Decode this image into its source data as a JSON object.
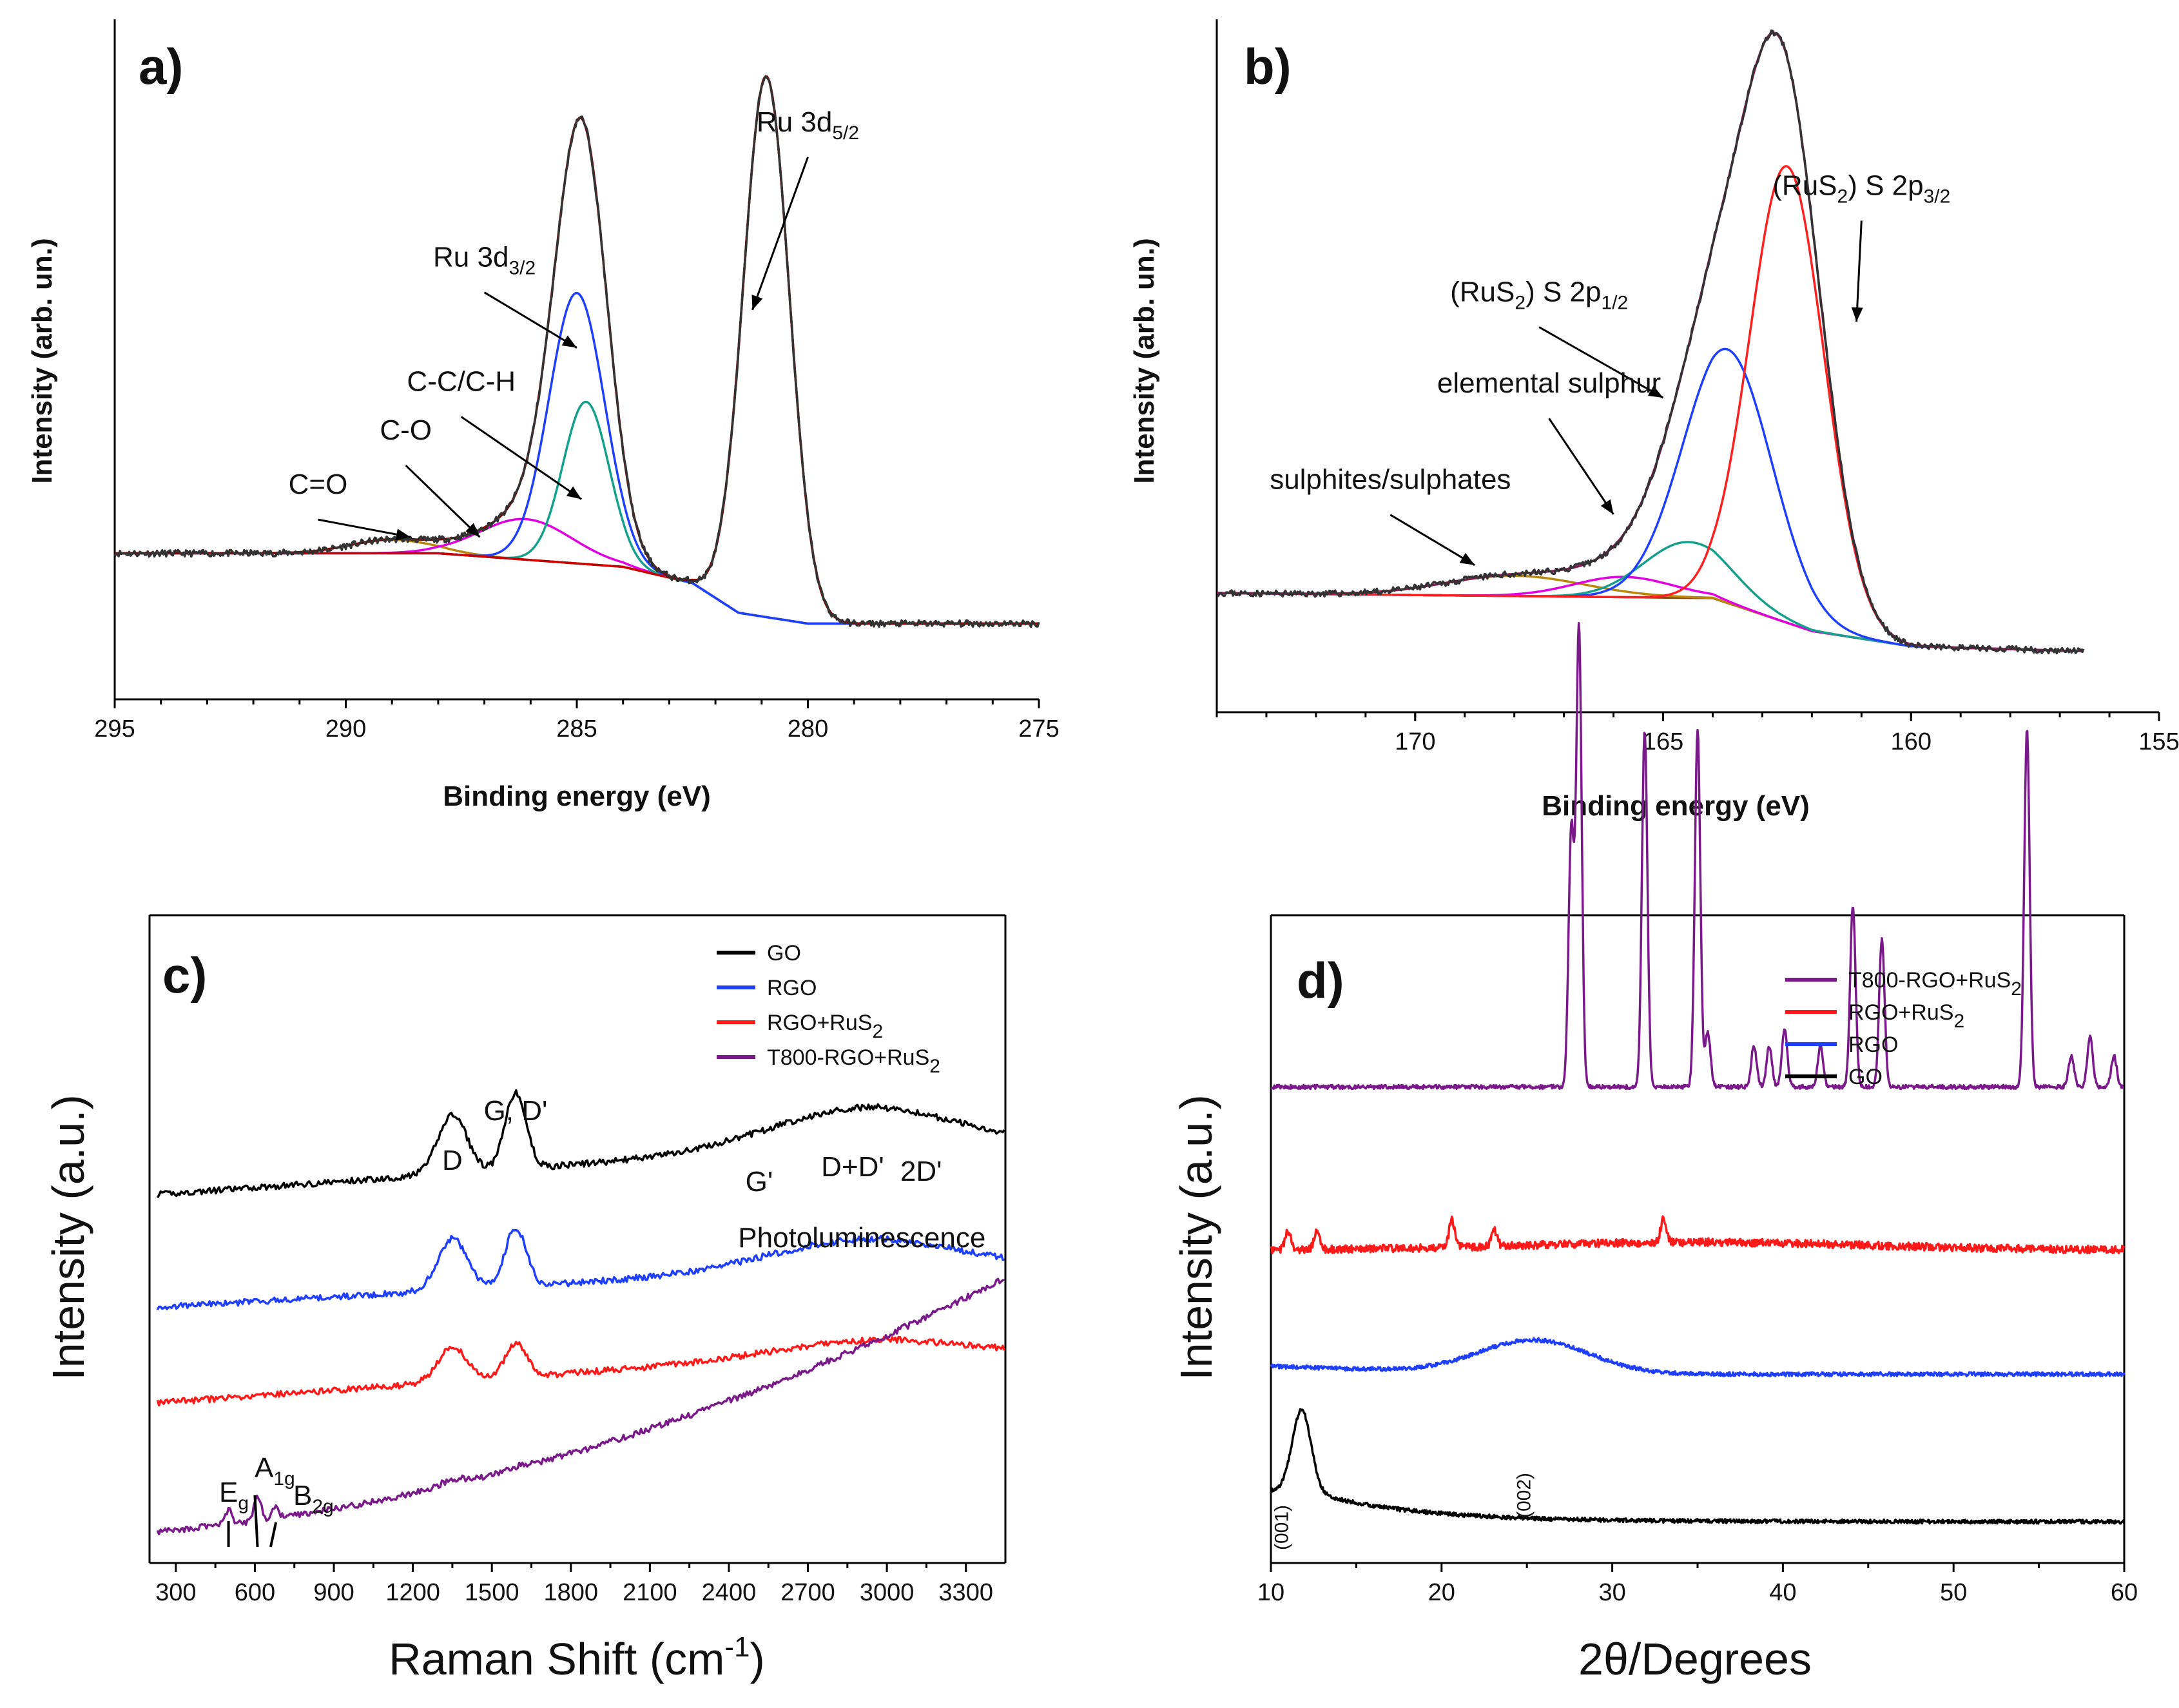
{
  "chart_data": [
    {
      "id": "a",
      "type": "line",
      "panel_label": "a)",
      "xlabel": "Binding energy (eV)",
      "ylabel": "Intensity (arb. un.)",
      "xlim": [
        295,
        275
      ],
      "ylim": [
        0,
        1.15
      ],
      "xticks": [
        "295",
        "290",
        "285",
        "280",
        "275"
      ],
      "baseline": [
        [
          295,
          0.27
        ],
        [
          288,
          0.27
        ],
        [
          284,
          0.245
        ],
        [
          282.5,
          0.215
        ],
        [
          281.5,
          0.16
        ],
        [
          280,
          0.14
        ],
        [
          275,
          0.14
        ]
      ],
      "components": [
        {
          "name": "C=O",
          "color": "#b8860b",
          "center": 289.0,
          "height": 0.025,
          "width": 0.9
        },
        {
          "name": "C-O",
          "color": "#e000e0",
          "center": 286.1,
          "height": 0.075,
          "width": 1.0
        },
        {
          "name": "C-C/C-H",
          "color": "#14a08c",
          "center": 284.8,
          "height": 0.3,
          "width": 0.5
        },
        {
          "name": "Ru 3d3/2",
          "color": "#1f3fff",
          "center": 285.0,
          "height": 0.5,
          "width": 0.6
        },
        {
          "name": "Ru 3d5/2",
          "color": "#cc0000",
          "center": 280.9,
          "height": 1.0,
          "width": 0.5
        }
      ],
      "annotations": [
        {
          "text": "Ru 3d",
          "sub": "5/2",
          "x": 280.0,
          "y": 1.05,
          "arrow_to": [
            281.2,
            0.72
          ]
        },
        {
          "text": "Ru 3d",
          "sub": "3/2",
          "x": 287.0,
          "y": 0.8,
          "arrow_to": [
            285.0,
            0.65
          ]
        },
        {
          "text": "C-C/C-H",
          "sub": "",
          "x": 287.5,
          "y": 0.57,
          "arrow_to": [
            284.9,
            0.37
          ]
        },
        {
          "text": "C-O",
          "sub": "",
          "x": 288.7,
          "y": 0.48,
          "arrow_to": [
            287.1,
            0.3
          ]
        },
        {
          "text": "C=O",
          "sub": "",
          "x": 290.6,
          "y": 0.38,
          "arrow_to": [
            288.6,
            0.3
          ]
        }
      ]
    },
    {
      "id": "b",
      "type": "line",
      "panel_label": "b)",
      "xlabel": "Binding energy (eV)",
      "ylabel": "Intensity (arb. un.)",
      "xlim": [
        174,
        155
      ],
      "ylim": [
        0,
        1.15
      ],
      "xticks": [
        "170",
        "165",
        "160",
        "155"
      ],
      "baseline": [
        [
          174,
          0.235
        ],
        [
          164,
          0.225
        ],
        [
          162,
          0.16
        ],
        [
          160,
          0.13
        ],
        [
          156.5,
          0.12
        ]
      ],
      "components": [
        {
          "name": "sulphites/sulphates",
          "color": "#b8860b",
          "center": 168.0,
          "height": 0.04,
          "width": 1.4
        },
        {
          "name": "elemental sulphur",
          "color": "#e000e0",
          "center": 165.8,
          "height": 0.04,
          "width": 1.0
        },
        {
          "name": "teal",
          "color": "#14a08c",
          "center": 164.5,
          "height": 0.11,
          "width": 0.9
        },
        {
          "name": "(RuS2) S 2p1/2",
          "color": "#1f3fff",
          "center": 163.7,
          "height": 0.5,
          "width": 0.9
        },
        {
          "name": "(RuS2) S 2p3/2",
          "color": "#ff2020",
          "center": 162.5,
          "height": 0.9,
          "width": 0.75
        }
      ],
      "annotations": [
        {
          "text": "(RuS",
          "sub": "2",
          "tail": ") S 2p",
          "sub2": "3/2",
          "x": 161.0,
          "y": 1.02,
          "arrow_to": [
            161.1,
            0.77
          ]
        },
        {
          "text": "(RuS",
          "sub": "2",
          "tail": ") S 2p",
          "sub2": "1/2",
          "x": 167.5,
          "y": 0.81,
          "arrow_to": [
            165.0,
            0.62
          ]
        },
        {
          "text": "elemental sulphur",
          "sub": "",
          "x": 167.3,
          "y": 0.63,
          "arrow_to": [
            166.0,
            0.39
          ]
        },
        {
          "text": "sulphites/sulphates",
          "sub": "",
          "x": 170.5,
          "y": 0.44,
          "arrow_to": [
            168.8,
            0.29
          ]
        }
      ]
    },
    {
      "id": "c",
      "type": "line",
      "panel_label": "c)",
      "xlabel": "Raman Shift (cm",
      "xlabel_sup": "-1",
      "xlabel_tail": ")",
      "ylabel": "Intensity (a.u.)",
      "xlim": [
        200,
        3450
      ],
      "xticks": [
        "300",
        "600",
        "900",
        "1200",
        "1500",
        "1800",
        "2100",
        "2400",
        "2700",
        "3000",
        "3300"
      ],
      "peak_labels": [
        "D",
        "G, D'",
        "G'",
        "D+D'",
        "2D'",
        "Photoluminescence"
      ],
      "phase_labels": [
        {
          "text": "E",
          "sub": "g"
        },
        {
          "text": "A",
          "sub": "1g"
        },
        {
          "text": "B",
          "sub": "2g"
        }
      ],
      "series": [
        {
          "name": "GO",
          "color": "#000000",
          "offset": 2.85,
          "bg_slope": 0.55,
          "d": 0.48,
          "g": 0.62,
          "pl": 0.3
        },
        {
          "name": "RGO",
          "color": "#1f3fff",
          "offset": 1.93,
          "bg_slope": 0.45,
          "d": 0.42,
          "g": 0.48,
          "pl": 0.22
        },
        {
          "name": "RGO+RuS2",
          "color": "#ff1a1a",
          "offset": 1.15,
          "bg_slope": 0.55,
          "d": 0.28,
          "g": 0.28,
          "pl": 0.1
        },
        {
          "name": "T800-RGO+RuS2",
          "color": "#7a1a8a",
          "offset": 0.1,
          "bg_slope": 1.15,
          "d": 0.04,
          "g": 0.02,
          "pl": 0.0
        }
      ],
      "legend": [
        "GO",
        "RGO",
        "RGO+RuS2",
        "T800-RGO+RuS2"
      ]
    },
    {
      "id": "d",
      "type": "line",
      "panel_label": "d)",
      "xlabel": "2θ/Degrees",
      "ylabel": "Intensity (a.u.)",
      "xlim": [
        10,
        60
      ],
      "xticks": [
        "10",
        "20",
        "30",
        "40",
        "50",
        "60"
      ],
      "reflections": [
        "(001)",
        "(002)"
      ],
      "series": [
        {
          "name": "T800-RGO+RuS2",
          "color": "#7a1a8a",
          "offset": 2.9,
          "peaks": [
            [
              27.6,
              1.65
            ],
            [
              28.05,
              2.95
            ],
            [
              31.9,
              2.3
            ],
            [
              35.0,
              2.3
            ],
            [
              35.6,
              0.35
            ],
            [
              38.3,
              0.26
            ],
            [
              39.2,
              0.26
            ],
            [
              40.1,
              0.38
            ],
            [
              42.2,
              0.26
            ],
            [
              44.1,
              1.17
            ],
            [
              45.8,
              0.95
            ],
            [
              54.3,
              2.3
            ],
            [
              56.9,
              0.2
            ],
            [
              58.0,
              0.32
            ],
            [
              59.4,
              0.2
            ]
          ]
        },
        {
          "name": "RGO+RuS2",
          "color": "#ff1a1a",
          "offset": 1.85,
          "peaks": [
            [
              11.0,
              0.12
            ],
            [
              12.7,
              0.12
            ],
            [
              20.6,
              0.18
            ],
            [
              23.1,
              0.1
            ],
            [
              33.0,
              0.15
            ]
          ]
        },
        {
          "name": "RGO",
          "color": "#1f3fff",
          "offset": 1.05,
          "broad": [
            25.4,
            0.22,
            3.2
          ]
        },
        {
          "name": "GO",
          "color": "#000000",
          "offset": 0.1,
          "sharp": [
            11.8,
            0.52
          ]
        }
      ],
      "legend": [
        "T800-RGO+RuS2",
        "RGO+RuS2",
        "RGO",
        "GO"
      ]
    }
  ]
}
